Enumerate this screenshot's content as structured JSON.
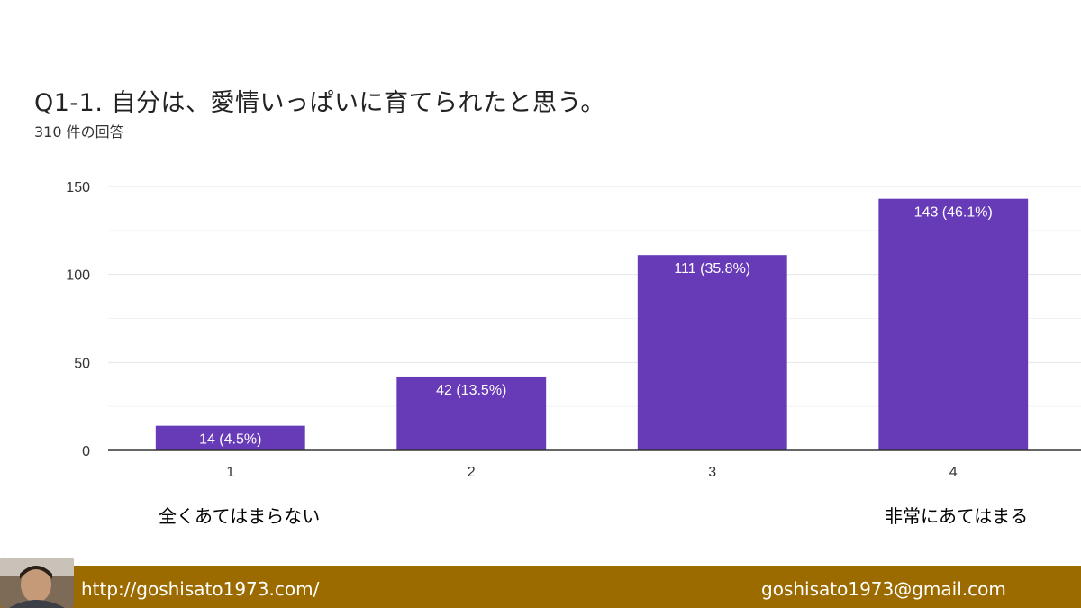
{
  "slide": {
    "title": "Q1-1.  自分は、愛情いっぱいに育てられたと思う。",
    "response_count": "310 件の回答"
  },
  "chart_data": {
    "type": "bar",
    "categories": [
      "1",
      "2",
      "3",
      "4"
    ],
    "values": [
      14,
      42,
      111,
      143
    ],
    "data_labels": [
      "14 (4.5%)",
      "42 (13.5%)",
      "111 (35.8%)",
      "143 (46.1%)"
    ],
    "y_ticks": [
      0,
      50,
      100,
      150
    ],
    "ylim": [
      0,
      150
    ],
    "grid": true,
    "bar_color": "#673ab7",
    "grid_color": "#e6e6e6",
    "axis_color": "#333333"
  },
  "scale_labels": {
    "low": "全くあてはまらない",
    "high": "非常にあてはまる"
  },
  "footer": {
    "url": "http://goshisato1973.com/",
    "email": "goshisato1973@gmail.com",
    "background": "#9c6b00"
  }
}
